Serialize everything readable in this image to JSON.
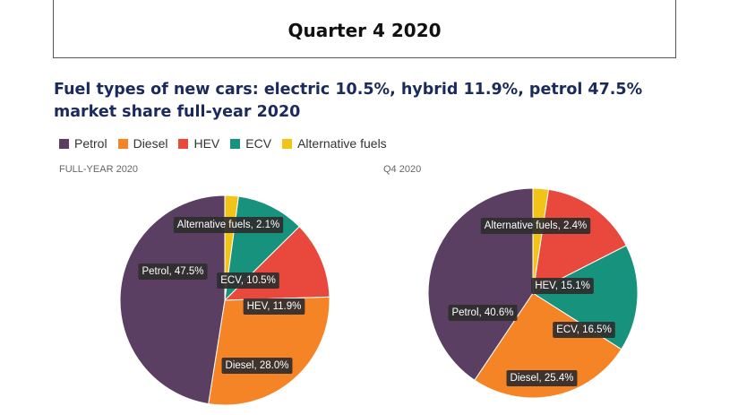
{
  "page_title": "Quarter 4 2020",
  "headline": "Fuel types of new cars: electric 10.5%, hybrid 11.9%, petrol 47.5% market share full-year 2020",
  "chart_data": [
    {
      "type": "pie",
      "subtitle": "FULL-YEAR 2020",
      "slices": [
        {
          "name": "Alternative fuels",
          "value": 2.1,
          "label": "Alternative fuels, 2.1%"
        },
        {
          "name": "ECV",
          "value": 10.5,
          "label": "ECV, 10.5%"
        },
        {
          "name": "HEV",
          "value": 11.9,
          "label": "HEV, 11.9%"
        },
        {
          "name": "Diesel",
          "value": 28.0,
          "label": "Diesel, 28.0%"
        },
        {
          "name": "Petrol",
          "value": 47.5,
          "label": "Petrol, 47.5%"
        }
      ]
    },
    {
      "type": "pie",
      "subtitle": "Q4 2020",
      "slices": [
        {
          "name": "Alternative fuels",
          "value": 2.4,
          "label": "Alternative fuels, 2.4%"
        },
        {
          "name": "HEV",
          "value": 15.1,
          "label": "HEV, 15.1%"
        },
        {
          "name": "ECV",
          "value": 16.5,
          "label": "ECV, 16.5%"
        },
        {
          "name": "Diesel",
          "value": 25.4,
          "label": "Diesel, 25.4%"
        },
        {
          "name": "Petrol",
          "value": 40.6,
          "label": "Petrol, 40.6%"
        }
      ]
    }
  ],
  "legend": [
    {
      "name": "Petrol",
      "color": "#5a3f63"
    },
    {
      "name": "Diesel",
      "color": "#f58426"
    },
    {
      "name": "HEV",
      "color": "#e8493c"
    },
    {
      "name": "ECV",
      "color": "#17927c"
    },
    {
      "name": "Alternative fuels",
      "color": "#f2c418"
    }
  ]
}
